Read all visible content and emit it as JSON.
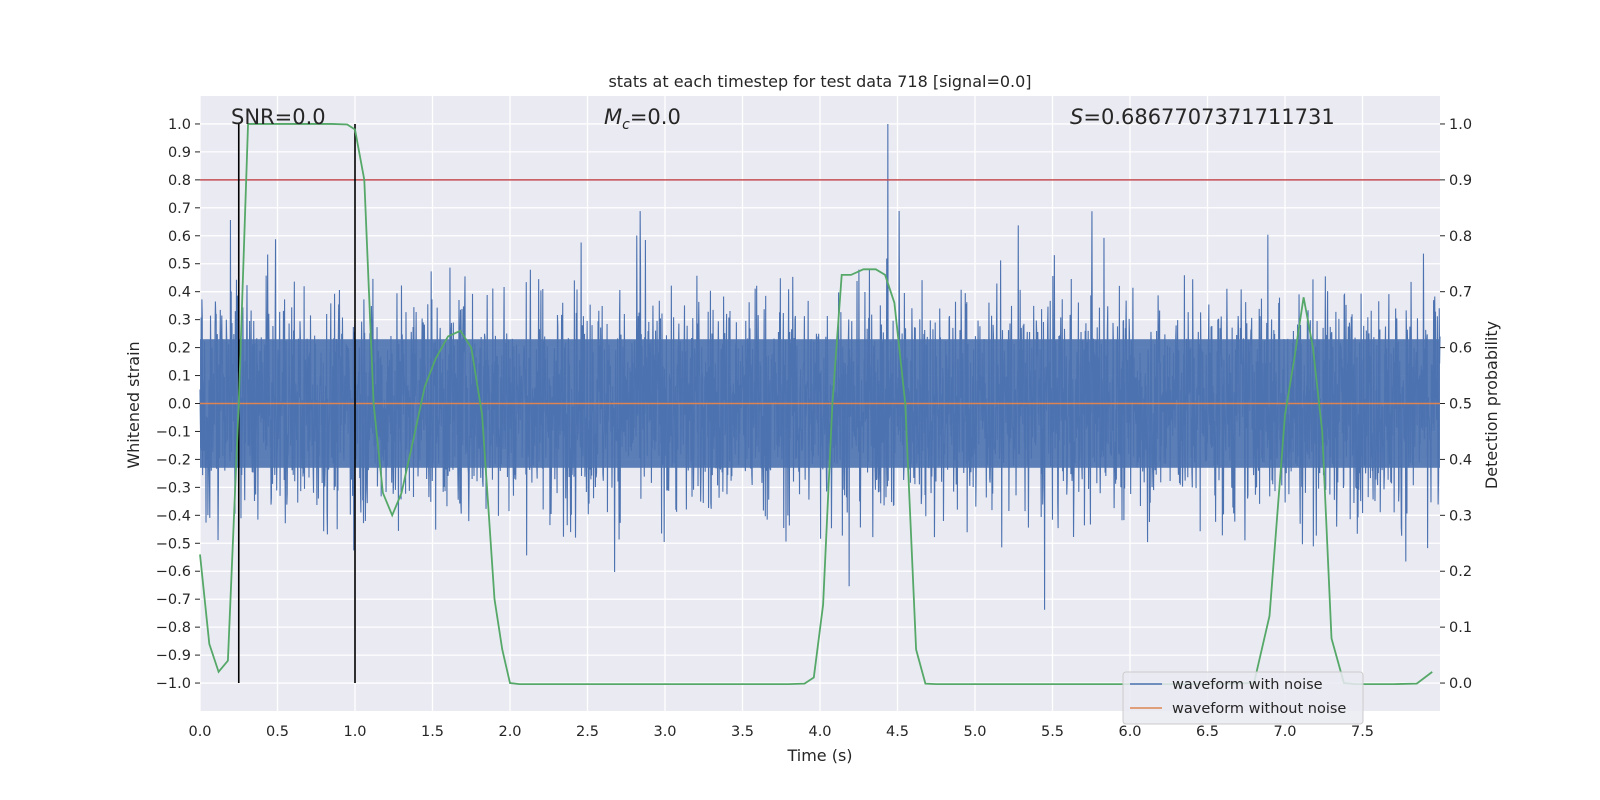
{
  "chart_data": {
    "type": "line",
    "title": "stats at each timestep for test data 718 [signal=0.0]",
    "xlabel": "Time (s)",
    "ylabel": "Whitened strain",
    "y2label": "Detection probability",
    "xlim": [
      0.0,
      8.0
    ],
    "ylim": [
      -1.1,
      1.1
    ],
    "y2lim": [
      -0.05,
      1.05
    ],
    "xticks": [
      0.0,
      0.5,
      1.0,
      1.5,
      2.0,
      2.5,
      3.0,
      3.5,
      4.0,
      4.5,
      5.0,
      5.5,
      6.0,
      6.5,
      7.0,
      7.5
    ],
    "xtick_labels": [
      "0.0",
      "0.5",
      "1.0",
      "1.5",
      "2.0",
      "2.5",
      "3.0",
      "3.5",
      "4.0",
      "4.5",
      "5.0",
      "5.5",
      "6.0",
      "6.5",
      "7.0",
      "7.5"
    ],
    "yticks": [
      1.0,
      0.9,
      0.8,
      0.7,
      0.6,
      0.5,
      0.4,
      0.3,
      0.2,
      0.1,
      0.0,
      -0.1,
      -0.2,
      -0.3,
      -0.4,
      -0.5,
      -0.6,
      -0.7,
      -0.8,
      -0.9,
      -1.0
    ],
    "ytick_labels": [
      "1.0",
      "0.9",
      "0.8",
      "0.7",
      "0.6",
      "0.5",
      "0.4",
      "0.3",
      "0.2",
      "0.1",
      "0.0",
      "−0.1",
      "−0.2",
      "−0.3",
      "−0.4",
      "−0.5",
      "−0.6",
      "−0.7",
      "−0.8",
      "−0.9",
      "−1.0"
    ],
    "y2ticks": [
      1.0,
      0.9,
      0.8,
      0.7,
      0.6,
      0.5,
      0.4,
      0.3,
      0.2,
      0.1,
      0.0
    ],
    "y2tick_labels": [
      "1.0",
      "0.9",
      "0.8",
      "0.7",
      "0.6",
      "0.5",
      "0.4",
      "0.3",
      "0.2",
      "0.1",
      "0.0"
    ],
    "grid": true,
    "legend_position": "lower-right",
    "annotations": {
      "snr": "SNR=0.0",
      "mc_symbol": "M",
      "mc_subscript": "c",
      "mc_value": "=0.0",
      "s_symbol": "S",
      "s_value": "=0.6867707371711731"
    },
    "threshold_line": {
      "axis": "y2",
      "value": 0.9,
      "color": "#c44e52"
    },
    "window_markers": [
      0.25,
      1.0
    ],
    "series": [
      {
        "name": "waveform with noise",
        "axis": "y1",
        "color": "#4c72b0",
        "kind": "noise",
        "approx_std": 0.2,
        "approx_peak": 1.0
      },
      {
        "name": "waveform without noise",
        "axis": "y1",
        "color": "#dd8452",
        "x": [
          0.0,
          8.0
        ],
        "y": [
          0.0,
          0.0
        ]
      },
      {
        "name": "detection probability",
        "axis": "y2",
        "color": "#55a868",
        "x": [
          0.0,
          0.06,
          0.12,
          0.18,
          0.25,
          0.31,
          0.4,
          0.55,
          0.7,
          0.85,
          0.95,
          1.0,
          1.06,
          1.12,
          1.18,
          1.24,
          1.3,
          1.38,
          1.45,
          1.52,
          1.6,
          1.68,
          1.75,
          1.82,
          1.9,
          1.95,
          2.0,
          2.06,
          2.12,
          2.5,
          3.0,
          3.5,
          3.8,
          3.9,
          3.96,
          4.02,
          4.08,
          4.14,
          4.2,
          4.28,
          4.36,
          4.42,
          4.48,
          4.55,
          4.62,
          4.68,
          4.75,
          5.0,
          5.5,
          6.0,
          6.5,
          6.8,
          6.9,
          6.95,
          7.0,
          7.06,
          7.12,
          7.18,
          7.24,
          7.3,
          7.38,
          7.45,
          7.55,
          7.7,
          7.85,
          7.95
        ],
        "y": [
          0.23,
          0.07,
          0.02,
          0.04,
          0.5,
          1.0,
          1.0,
          1.0,
          1.0,
          1.0,
          0.999,
          0.99,
          0.9,
          0.5,
          0.34,
          0.3,
          0.34,
          0.44,
          0.53,
          0.58,
          0.62,
          0.63,
          0.6,
          0.48,
          0.15,
          0.06,
          0.0,
          -0.002,
          -0.002,
          -0.002,
          -0.002,
          -0.002,
          -0.002,
          -0.001,
          0.01,
          0.14,
          0.5,
          0.73,
          0.73,
          0.74,
          0.74,
          0.73,
          0.68,
          0.5,
          0.06,
          -0.001,
          -0.002,
          -0.002,
          -0.002,
          -0.002,
          -0.002,
          0.0,
          0.12,
          0.3,
          0.48,
          0.58,
          0.69,
          0.6,
          0.45,
          0.08,
          0.0,
          -0.002,
          -0.002,
          -0.002,
          -0.001,
          0.02
        ]
      }
    ]
  }
}
